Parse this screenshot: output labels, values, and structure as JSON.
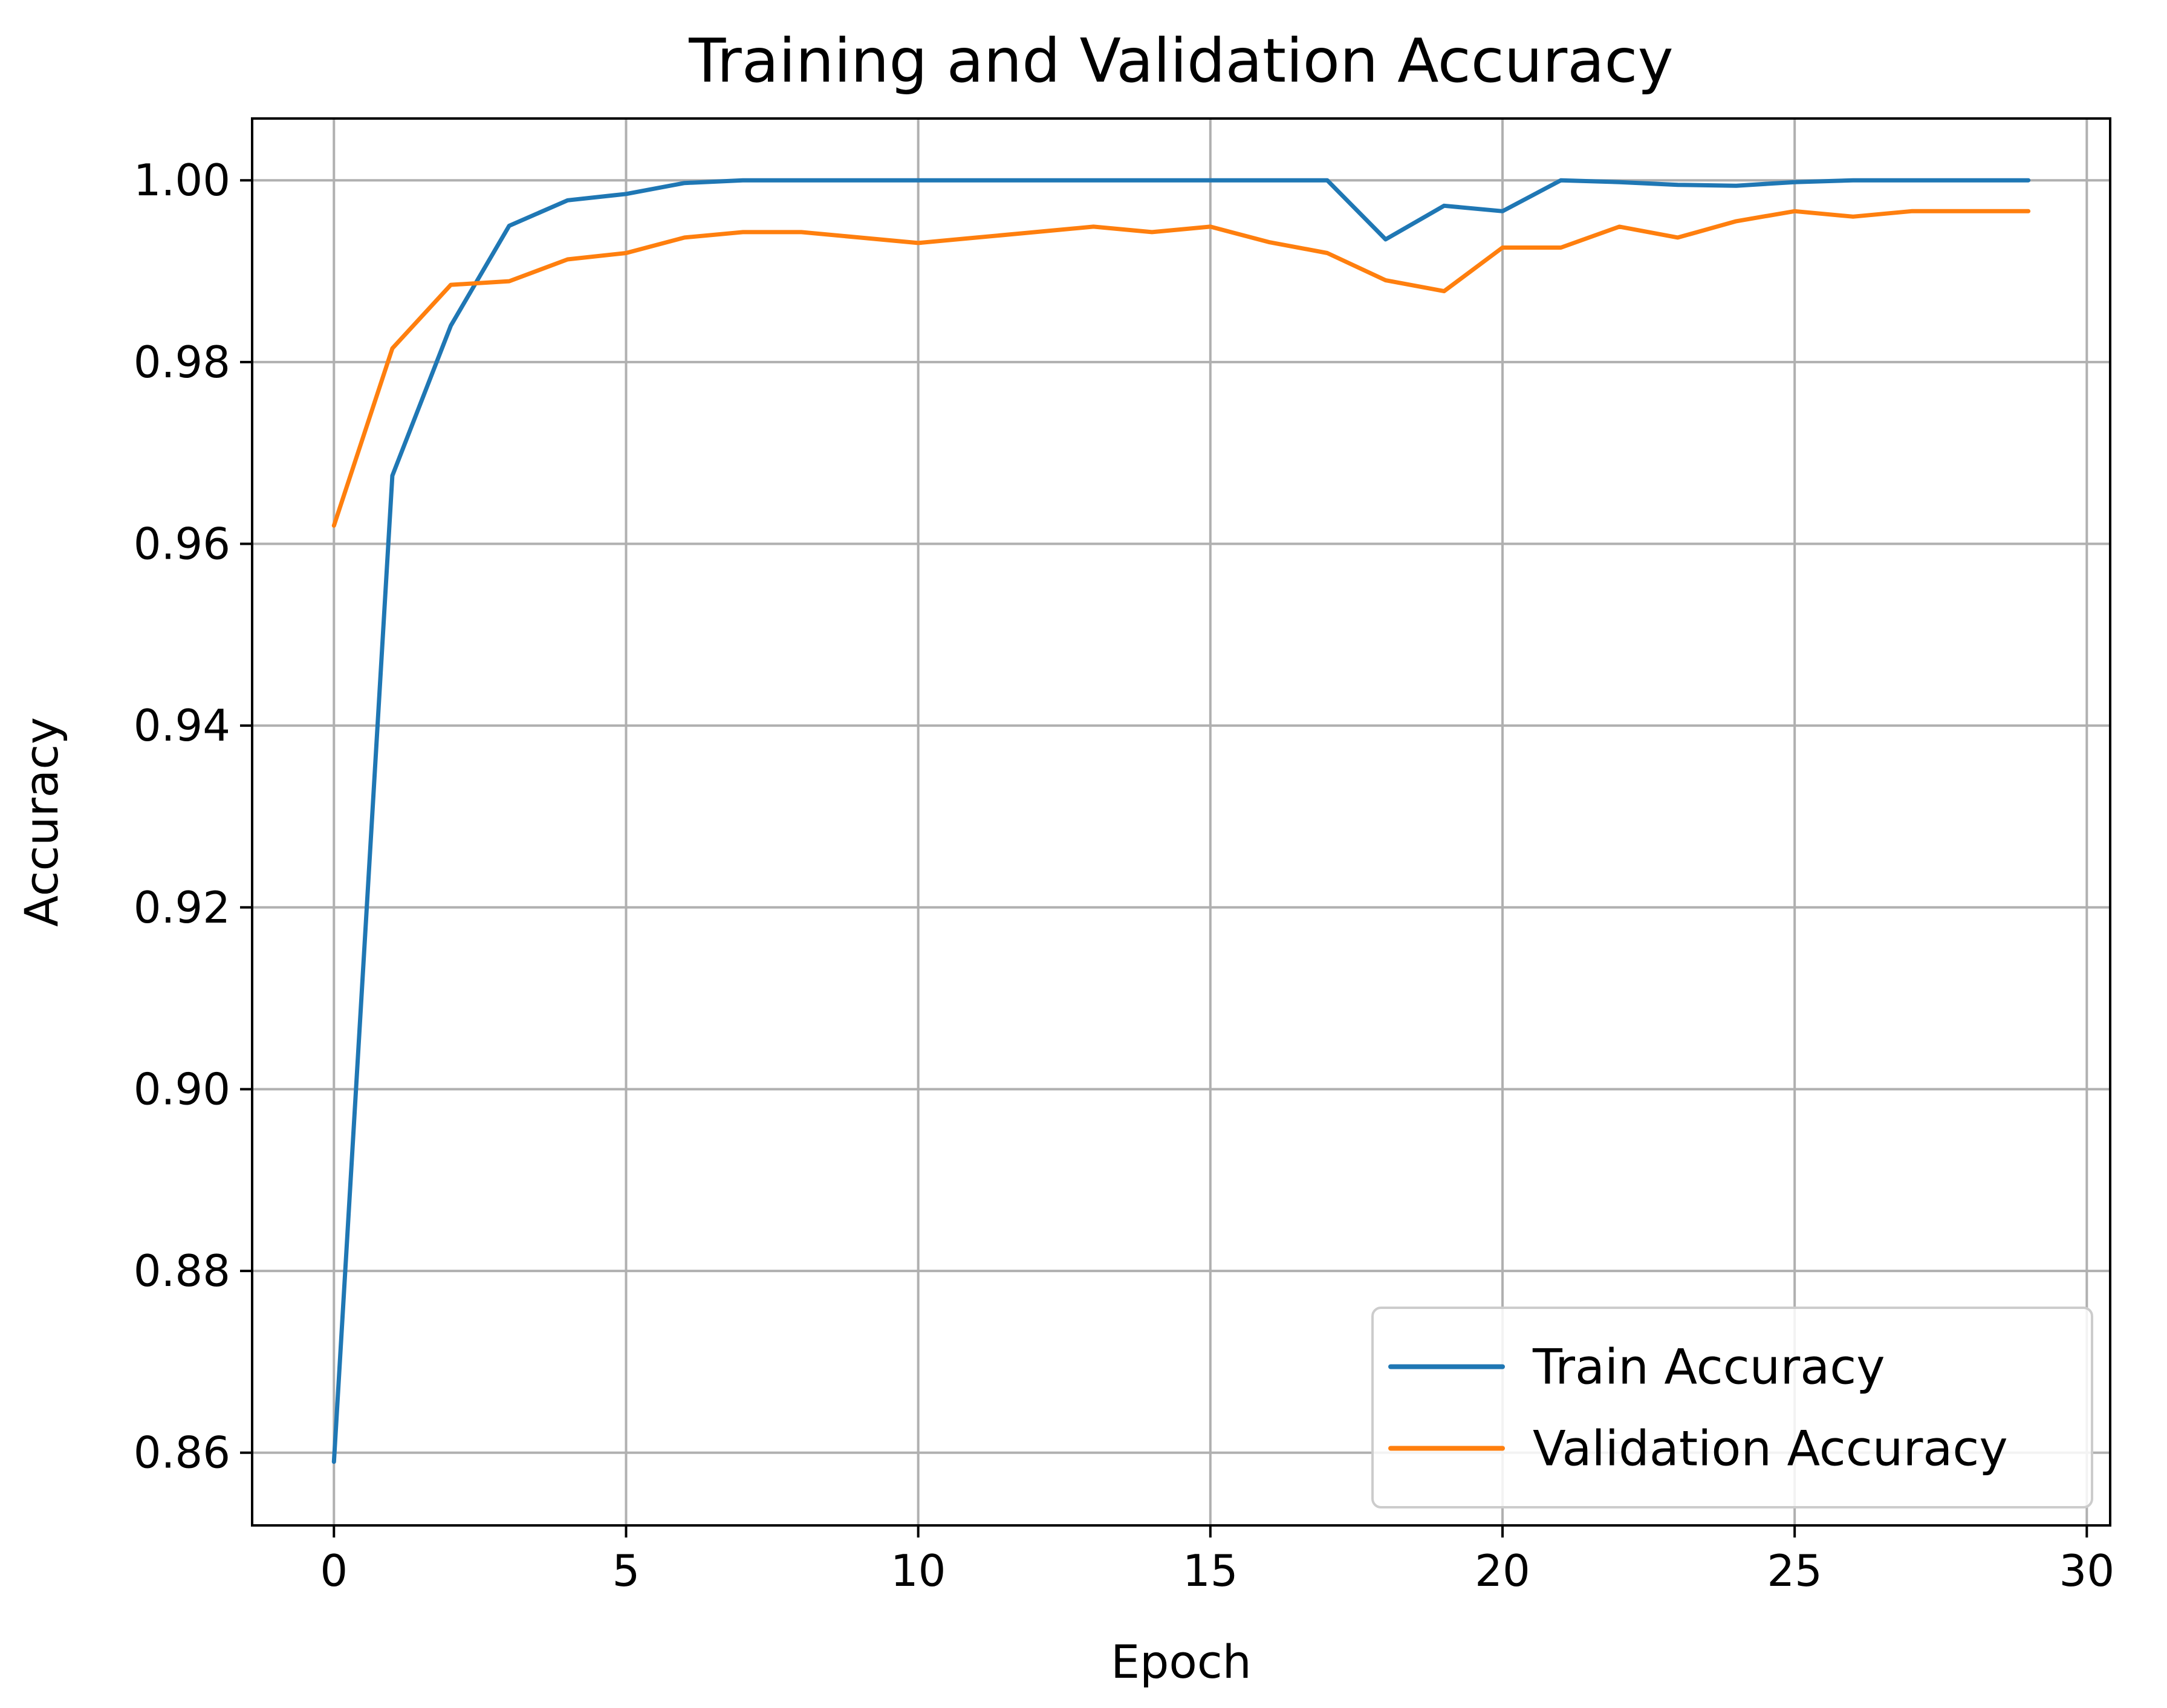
{
  "chart_data": {
    "type": "line",
    "title": "Training and Validation Accuracy",
    "xlabel": "Epoch",
    "ylabel": "Accuracy",
    "xlim": [
      -1.4,
      30.4
    ],
    "ylim": [
      0.852,
      1.0068
    ],
    "xticks": [
      0,
      5,
      10,
      15,
      20,
      25,
      30
    ],
    "xtick_labels": [
      "0",
      "5",
      "10",
      "15",
      "20",
      "25",
      "30"
    ],
    "yticks": [
      0.86,
      0.88,
      0.9,
      0.92,
      0.94,
      0.96,
      0.98,
      1.0
    ],
    "ytick_labels": [
      "0.86",
      "0.88",
      "0.90",
      "0.92",
      "0.94",
      "0.96",
      "0.98",
      "1.00"
    ],
    "grid": true,
    "legend_position": "lower-right",
    "x": [
      0,
      1,
      2,
      3,
      4,
      5,
      6,
      7,
      8,
      9,
      10,
      11,
      12,
      13,
      14,
      15,
      16,
      17,
      18,
      19,
      20,
      21,
      22,
      23,
      24,
      25,
      26,
      27,
      28,
      29
    ],
    "series": [
      {
        "name": "Train Accuracy",
        "color": "#1f77b4",
        "values": [
          0.859,
          0.9675,
          0.984,
          0.995,
          0.9978,
          0.9985,
          0.9997,
          1.0,
          1.0,
          1.0,
          1.0,
          1.0,
          1.0,
          1.0,
          1.0,
          1.0,
          1.0,
          1.0,
          0.9935,
          0.9972,
          0.9966,
          1.0,
          0.9998,
          0.9995,
          0.9994,
          0.9998,
          1.0,
          1.0,
          1.0,
          1.0
        ]
      },
      {
        "name": "Validation Accuracy",
        "color": "#ff7f0e",
        "values": [
          0.962,
          0.9815,
          0.9885,
          0.9889,
          0.9913,
          0.992,
          0.9937,
          0.9943,
          0.9943,
          0.9937,
          0.9931,
          0.9937,
          0.9943,
          0.9949,
          0.9943,
          0.9949,
          0.9932,
          0.992,
          0.989,
          0.9878,
          0.9926,
          0.9926,
          0.9949,
          0.9937,
          0.9955,
          0.9966,
          0.996,
          0.9966,
          0.9966,
          0.9966
        ]
      }
    ]
  }
}
